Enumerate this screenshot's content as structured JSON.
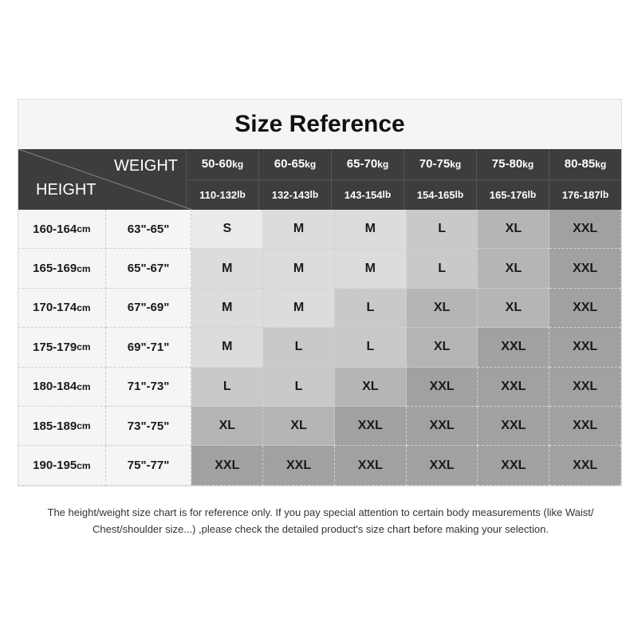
{
  "title": "Size Reference",
  "header": {
    "weight_label": "WEIGHT",
    "height_label": "HEIGHT"
  },
  "weights": [
    {
      "kg": "50-60",
      "lb": "110-132"
    },
    {
      "kg": "60-65",
      "lb": "132-143"
    },
    {
      "kg": "65-70",
      "lb": "143-154"
    },
    {
      "kg": "70-75",
      "lb": "154-165"
    },
    {
      "kg": "75-80",
      "lb": "165-176"
    },
    {
      "kg": "80-85",
      "lb": "176-187"
    }
  ],
  "units": {
    "kg": "kg",
    "lb": "lb",
    "cm": "cm"
  },
  "rows": [
    {
      "cm": "160-164",
      "inch": "63\"-65\"",
      "sizes": [
        "S",
        "M",
        "M",
        "L",
        "XL",
        "XXL"
      ]
    },
    {
      "cm": "165-169",
      "inch": "65\"-67\"",
      "sizes": [
        "M",
        "M",
        "M",
        "L",
        "XL",
        "XXL"
      ]
    },
    {
      "cm": "170-174",
      "inch": "67\"-69\"",
      "sizes": [
        "M",
        "M",
        "L",
        "XL",
        "XL",
        "XXL"
      ]
    },
    {
      "cm": "175-179",
      "inch": "69\"-71\"",
      "sizes": [
        "M",
        "L",
        "L",
        "XL",
        "XXL",
        "XXL"
      ]
    },
    {
      "cm": "180-184",
      "inch": "71\"-73\"",
      "sizes": [
        "L",
        "L",
        "XL",
        "XXL",
        "XXL",
        "XXL"
      ]
    },
    {
      "cm": "185-189",
      "inch": "73\"-75\"",
      "sizes": [
        "XL",
        "XL",
        "XXL",
        "XXL",
        "XXL",
        "XXL"
      ]
    },
    {
      "cm": "190-195",
      "inch": "75\"-77\"",
      "sizes": [
        "XXL",
        "XXL",
        "XXL",
        "XXL",
        "XXL",
        "XXL"
      ]
    }
  ],
  "size_colors": {
    "S": "#ebebeb",
    "M": "#dcdcdc",
    "L": "#c9c9c9",
    "XL": "#b5b5b5",
    "XXL": "#a1a1a1"
  },
  "header_color": "#3d3d3d",
  "note": "The height/weight size chart is for reference only. If you pay special attention to certain body measurements  (like Waist/ Chest/shoulder size...)  ,please check the detailed product's size chart before making your selection."
}
